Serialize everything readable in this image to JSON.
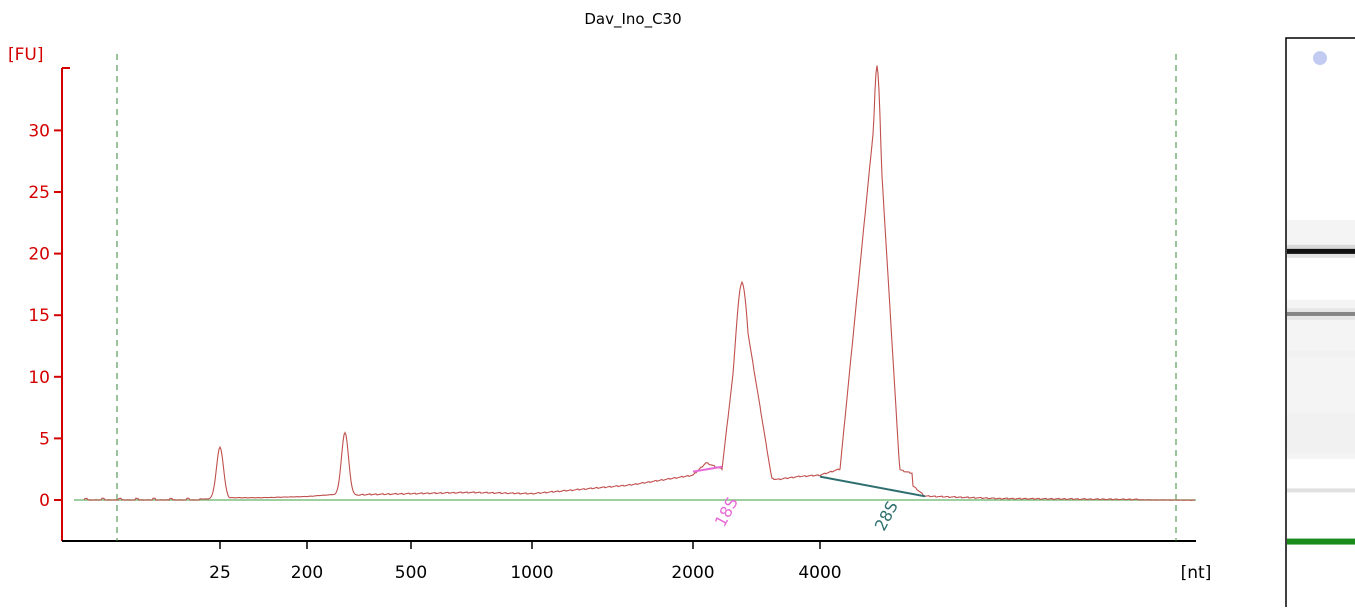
{
  "chart_data": {
    "type": "line",
    "title": "Dav_Ino_C30",
    "ylabel": "[FU]",
    "xlabel": "[nt]",
    "ylim": [
      -3.3,
      36
    ],
    "y_ticks": [
      0,
      5,
      10,
      15,
      20,
      25,
      30
    ],
    "x_tick_labels": [
      "25",
      "200",
      "500",
      "1000",
      "2000",
      "4000"
    ],
    "x_scale": "nonlinear (ladder-calibrated)",
    "grid": false,
    "colors": {
      "trace": "#c0504d",
      "axis": "#d40000",
      "baseline": "#7fbf7f",
      "window_lines": "#3a8a3a",
      "marker_18s": "#e86ad8",
      "marker_28s": "#2f6f6f",
      "gel_green": "#1a8a1a"
    },
    "annotations": [
      {
        "label": "18S",
        "x": "2000-2200",
        "y": 2.5
      },
      {
        "label": "28S",
        "x": "4000-5500",
        "y": 1.1
      }
    ],
    "series": [
      {
        "points": [
          [
            "<25",
            0.1
          ],
          [
            "<25",
            0.0
          ],
          [
            "25",
            0.1
          ],
          [
            "25",
            4.3
          ],
          [
            "25",
            0.2
          ],
          [
            "25-200",
            0.2
          ],
          [
            "200",
            0.3
          ],
          [
            "200-500",
            0.5
          ],
          [
            "200-500",
            5.5
          ],
          [
            "200-500",
            0.4
          ],
          [
            "500",
            0.5
          ],
          [
            "500-1000",
            0.6
          ],
          [
            "1000",
            0.5
          ],
          [
            "1000-2000",
            1.2
          ],
          [
            "2000",
            2.0
          ],
          [
            "2000-2200",
            3.0
          ],
          [
            "2000-2200",
            2.5
          ],
          [
            "2000-4000",
            16.5
          ],
          [
            "2000-4000",
            1.6
          ],
          [
            "2000-4000",
            1.9
          ],
          [
            "4000",
            2.0
          ],
          [
            "4000-5500",
            2.5
          ],
          [
            "4000-5500",
            33.0
          ],
          [
            "4000-5500",
            2.0
          ],
          [
            "5500",
            0.3
          ],
          [
            "5500-",
            0.1
          ],
          [
            ">",
            0.0
          ]
        ]
      }
    ]
  },
  "gel": {
    "bands": [
      {
        "position": 0.03,
        "intensity": 0.25,
        "color": "#9aa8e8"
      },
      {
        "position": 0.375,
        "intensity": 1.0,
        "color": "#111111"
      },
      {
        "position": 0.485,
        "intensity": 0.6,
        "color": "#444444"
      },
      {
        "position": 0.795,
        "intensity": 0.2,
        "color": "#aaaaaa"
      },
      {
        "position": 0.885,
        "intensity": 1.0,
        "color": "#1a8a1a"
      }
    ]
  }
}
